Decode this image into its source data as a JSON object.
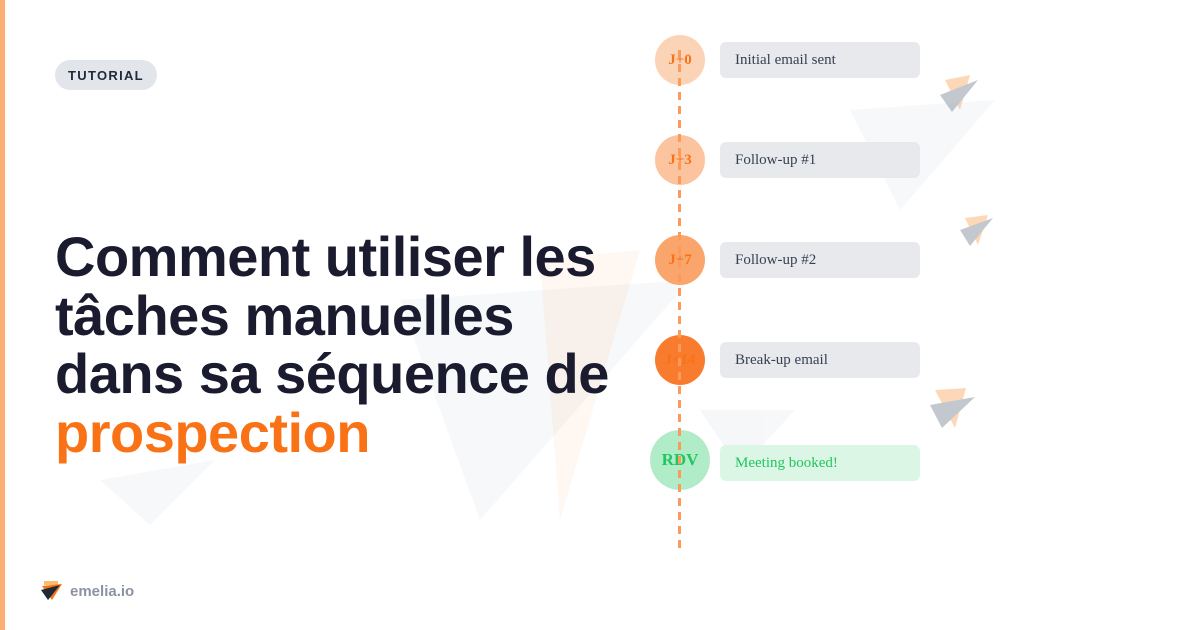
{
  "badge": "TUTORIAL",
  "title": {
    "line1": "Comment utiliser les",
    "line2": "tâches manuelles",
    "line3": "dans sa séquence de",
    "accent": "prospection"
  },
  "timeline": [
    {
      "day": "J+0",
      "label": "Initial email sent",
      "color": "#fbd3b6"
    },
    {
      "day": "J+3",
      "label": "Follow-up #1",
      "color": "#fbc49e"
    },
    {
      "day": "J+7",
      "label": "Follow-up #2",
      "color": "#f9a56b"
    },
    {
      "day": "J+14",
      "label": "Break-up email",
      "color": "#f97b2e"
    },
    {
      "day": "RDV",
      "label": "Meeting booked!",
      "color": "#b1ecc9"
    }
  ],
  "brand": {
    "name": "emelia.io",
    "accent": "#f97316"
  }
}
